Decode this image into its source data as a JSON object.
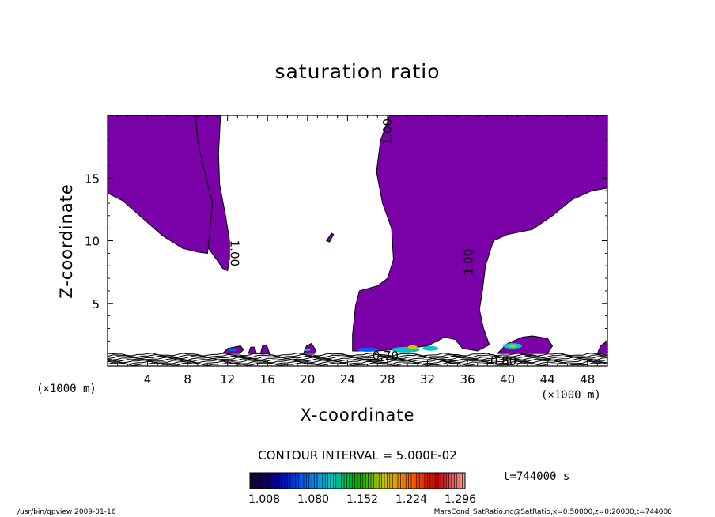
{
  "chart_data": {
    "type": "contour",
    "title": "saturation ratio",
    "xlabel": "X-coordinate",
    "ylabel": "Z-coordinate",
    "x_unit": "(×1000 m)",
    "xlim": [
      0,
      50
    ],
    "ylim": [
      0,
      20
    ],
    "x_ticks": [
      4,
      8,
      12,
      16,
      20,
      24,
      28,
      32,
      36,
      40,
      44,
      48
    ],
    "y_ticks": [
      5,
      10,
      15
    ],
    "contour_interval": "CONTOUR INTERVAL = 5.000E-02",
    "contour_labels": [
      "1.00",
      "1.00",
      "1.00",
      "0.80",
      "0.70"
    ],
    "fill_color": "#7a00a8",
    "colorbar": {
      "ticks": [
        "1.008",
        "1.080",
        "1.152",
        "1.224",
        "1.296"
      ],
      "colors": [
        "#1a0033",
        "#0000a0",
        "#0060ff",
        "#00c8c8",
        "#00b000",
        "#c8c800",
        "#ff6000",
        "#c00000",
        "#ff9999"
      ]
    },
    "time_label": "t=744000 s"
  },
  "footer": {
    "left": "/usr/bin/gpview   2009-01-16",
    "right": "MarsCond_SatRatio.nc@SatRatio,x=0:50000,z=0:20000,t=744000"
  }
}
